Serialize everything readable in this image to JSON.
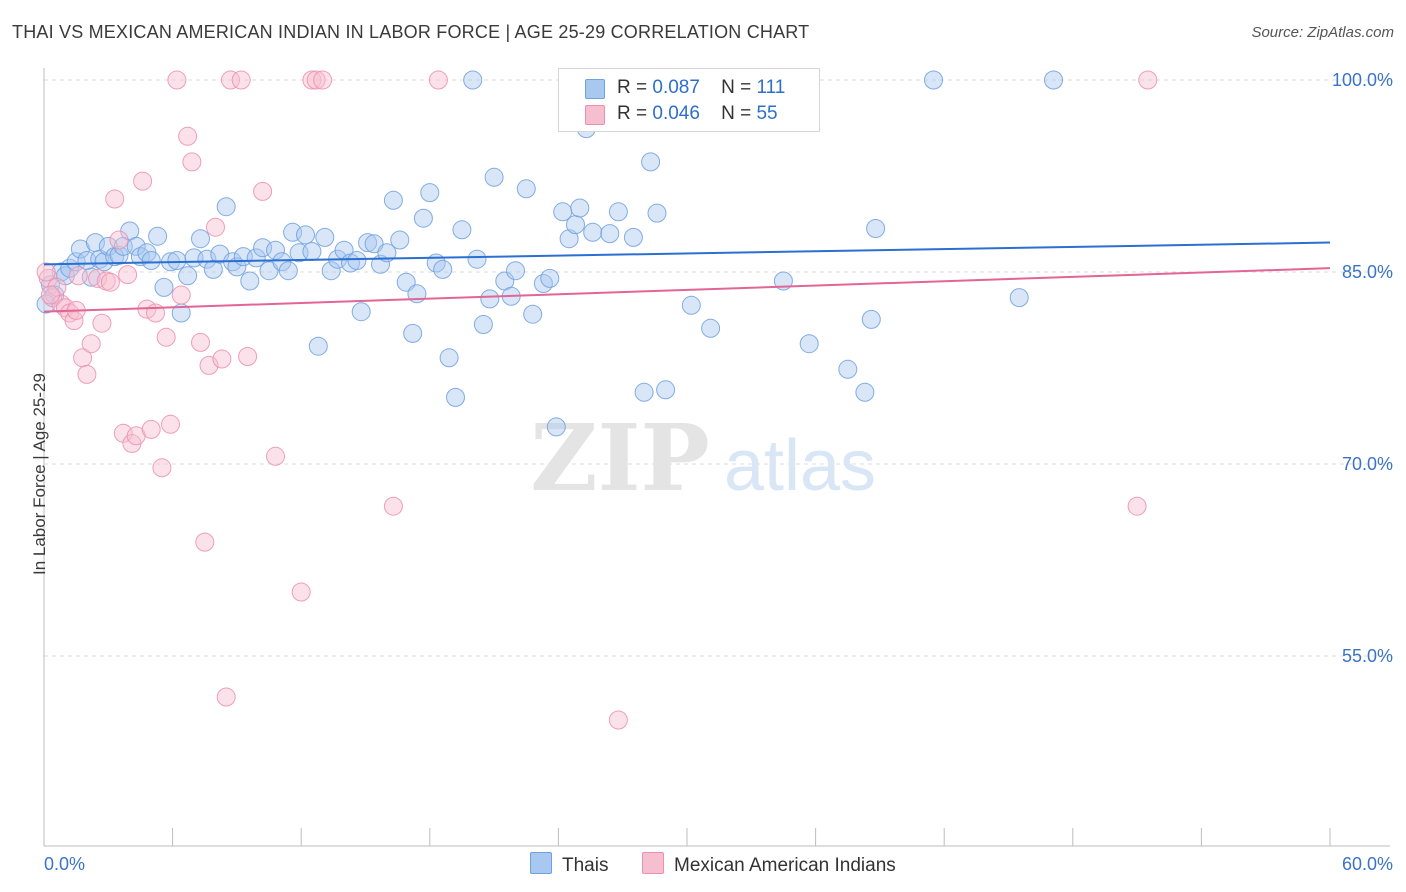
{
  "title": "THAI VS MEXICAN AMERICAN INDIAN IN LABOR FORCE | AGE 25-29 CORRELATION CHART",
  "source": "Source: ZipAtlas.com",
  "watermark": {
    "zip": "ZIP",
    "atlas": "atlas"
  },
  "legend": {
    "r_label": "R =",
    "n_label": "N =",
    "thai": {
      "r": "0.087",
      "n": "111"
    },
    "mexican": {
      "r": "0.046",
      "n": "55"
    }
  },
  "colors": {
    "thai_fill": "#a9c8f0",
    "thai_stroke": "#6fa0df",
    "thai_line": "#2a6fd1",
    "mex_fill": "#f6bfd0",
    "mex_stroke": "#ec8fae",
    "mex_line": "#e26594",
    "axis_text": "#3a74c8",
    "grid": "#dcdcdc"
  },
  "chart_data": {
    "type": "scatter",
    "title": "THAI VS MEXICAN AMERICAN INDIAN IN LABOR FORCE | AGE 25-29 CORRELATION CHART",
    "xlabel": "",
    "ylabel": "In Labor Force | Age 25-29",
    "xlim": [
      0,
      60
    ],
    "ylim": [
      41,
      101.5
    ],
    "x_tick_labels": [
      "0.0%",
      "60.0%"
    ],
    "y_tick_labels": [
      "100.0%",
      "85.0%",
      "70.0%",
      "55.0%"
    ],
    "y_ticks": [
      100,
      85,
      70,
      55
    ],
    "grid": true,
    "legend_position": "top-center",
    "series": [
      {
        "name": "Thais",
        "r": 0.087,
        "n": 111,
        "trend": [
          [
            0,
            85.6
          ],
          [
            60,
            87.3
          ]
        ],
        "points": [
          [
            0.3,
            84.0
          ],
          [
            0.5,
            83.2
          ],
          [
            0.8,
            85.0
          ],
          [
            1.0,
            84.7
          ],
          [
            1.2,
            85.3
          ],
          [
            1.5,
            85.8
          ],
          [
            1.7,
            86.8
          ],
          [
            2.0,
            85.9
          ],
          [
            2.2,
            84.6
          ],
          [
            2.4,
            87.3
          ],
          [
            2.6,
            86.0
          ],
          [
            2.8,
            85.8
          ],
          [
            3.0,
            87.0
          ],
          [
            3.3,
            86.2
          ],
          [
            3.5,
            86.3
          ],
          [
            3.7,
            87.0
          ],
          [
            4.0,
            88.2
          ],
          [
            4.3,
            87.0
          ],
          [
            4.5,
            86.2
          ],
          [
            4.8,
            86.5
          ],
          [
            5.0,
            85.9
          ],
          [
            5.3,
            87.8
          ],
          [
            5.6,
            83.8
          ],
          [
            5.9,
            85.8
          ],
          [
            6.2,
            85.9
          ],
          [
            6.4,
            81.8
          ],
          [
            6.7,
            84.7
          ],
          [
            7.0,
            86.1
          ],
          [
            7.3,
            87.6
          ],
          [
            7.6,
            86.0
          ],
          [
            7.9,
            85.2
          ],
          [
            8.2,
            86.4
          ],
          [
            8.5,
            90.1
          ],
          [
            8.8,
            85.8
          ],
          [
            9.0,
            85.4
          ],
          [
            9.3,
            86.2
          ],
          [
            9.6,
            84.3
          ],
          [
            9.9,
            86.1
          ],
          [
            10.2,
            86.9
          ],
          [
            10.5,
            85.1
          ],
          [
            10.8,
            86.7
          ],
          [
            11.1,
            85.8
          ],
          [
            11.4,
            85.1
          ],
          [
            11.6,
            88.1
          ],
          [
            11.9,
            86.5
          ],
          [
            12.2,
            87.9
          ],
          [
            12.5,
            86.6
          ],
          [
            12.8,
            79.2
          ],
          [
            13.1,
            87.7
          ],
          [
            13.4,
            85.1
          ],
          [
            13.7,
            86.0
          ],
          [
            14.0,
            86.7
          ],
          [
            14.3,
            85.7
          ],
          [
            14.6,
            85.9
          ],
          [
            14.8,
            81.9
          ],
          [
            15.1,
            87.3
          ],
          [
            15.4,
            87.2
          ],
          [
            15.7,
            85.6
          ],
          [
            16.0,
            86.5
          ],
          [
            16.3,
            90.6
          ],
          [
            16.6,
            87.5
          ],
          [
            16.9,
            84.2
          ],
          [
            17.2,
            80.2
          ],
          [
            17.4,
            83.3
          ],
          [
            17.7,
            89.2
          ],
          [
            18.0,
            91.2
          ],
          [
            18.3,
            85.7
          ],
          [
            18.6,
            85.2
          ],
          [
            18.9,
            78.3
          ],
          [
            19.2,
            75.2
          ],
          [
            19.5,
            88.3
          ],
          [
            20.0,
            100.0
          ],
          [
            20.2,
            86.0
          ],
          [
            20.5,
            80.9
          ],
          [
            20.8,
            82.9
          ],
          [
            21.0,
            92.4
          ],
          [
            21.5,
            84.3
          ],
          [
            21.8,
            83.1
          ],
          [
            22.0,
            85.1
          ],
          [
            22.5,
            91.5
          ],
          [
            22.8,
            81.7
          ],
          [
            23.3,
            84.1
          ],
          [
            23.6,
            84.5
          ],
          [
            23.9,
            72.9
          ],
          [
            24.2,
            89.7
          ],
          [
            24.5,
            87.6
          ],
          [
            24.8,
            88.7
          ],
          [
            25.0,
            90.0
          ],
          [
            25.3,
            96.2
          ],
          [
            25.6,
            88.1
          ],
          [
            26.4,
            88.0
          ],
          [
            26.8,
            89.7
          ],
          [
            27.5,
            87.7
          ],
          [
            28.0,
            75.6
          ],
          [
            28.3,
            93.6
          ],
          [
            28.6,
            89.6
          ],
          [
            29.0,
            75.8
          ],
          [
            30.2,
            82.4
          ],
          [
            31.1,
            80.6
          ],
          [
            31.5,
            100.0
          ],
          [
            33.1,
            100.0
          ],
          [
            34.5,
            84.3
          ],
          [
            35.7,
            79.4
          ],
          [
            37.5,
            77.4
          ],
          [
            38.3,
            75.6
          ],
          [
            38.6,
            81.3
          ],
          [
            38.8,
            88.4
          ],
          [
            41.5,
            100.0
          ],
          [
            45.5,
            83.0
          ],
          [
            47.1,
            100.0
          ],
          [
            0.1,
            82.5
          ]
        ]
      },
      {
        "name": "Mexican American Indians",
        "r": 0.046,
        "n": 55,
        "trend": [
          [
            0,
            81.9
          ],
          [
            60,
            85.3
          ]
        ],
        "points": [
          [
            0.2,
            84.5
          ],
          [
            0.4,
            83.0
          ],
          [
            0.6,
            83.8
          ],
          [
            0.8,
            82.5
          ],
          [
            1.0,
            82.2
          ],
          [
            1.2,
            81.8
          ],
          [
            1.4,
            81.2
          ],
          [
            1.6,
            84.7
          ],
          [
            1.8,
            78.3
          ],
          [
            2.0,
            77.0
          ],
          [
            2.2,
            79.4
          ],
          [
            2.5,
            84.5
          ],
          [
            2.7,
            81.0
          ],
          [
            2.9,
            84.3
          ],
          [
            3.1,
            84.2
          ],
          [
            3.3,
            90.7
          ],
          [
            3.5,
            87.5
          ],
          [
            3.7,
            72.4
          ],
          [
            3.9,
            84.8
          ],
          [
            4.1,
            71.6
          ],
          [
            4.3,
            72.2
          ],
          [
            4.6,
            92.1
          ],
          [
            4.8,
            82.1
          ],
          [
            5.0,
            72.7
          ],
          [
            5.2,
            81.8
          ],
          [
            5.5,
            69.7
          ],
          [
            5.7,
            79.9
          ],
          [
            5.9,
            73.1
          ],
          [
            6.2,
            100.0
          ],
          [
            6.4,
            83.2
          ],
          [
            6.7,
            95.6
          ],
          [
            6.9,
            93.6
          ],
          [
            7.3,
            79.5
          ],
          [
            7.5,
            63.9
          ],
          [
            7.7,
            77.7
          ],
          [
            8.0,
            88.5
          ],
          [
            8.3,
            78.2
          ],
          [
            8.5,
            51.8
          ],
          [
            8.7,
            100.0
          ],
          [
            9.2,
            100.0
          ],
          [
            9.5,
            78.4
          ],
          [
            10.2,
            91.3
          ],
          [
            10.8,
            70.6
          ],
          [
            12.0,
            60.0
          ],
          [
            12.5,
            100.0
          ],
          [
            12.7,
            100.0
          ],
          [
            13.0,
            100.0
          ],
          [
            16.3,
            66.7
          ],
          [
            18.4,
            100.0
          ],
          [
            26.8,
            50.0
          ],
          [
            51.0,
            66.7
          ],
          [
            51.5,
            100.0
          ],
          [
            0.1,
            85.0
          ],
          [
            0.3,
            83.2
          ],
          [
            1.5,
            82.0
          ]
        ]
      }
    ]
  }
}
